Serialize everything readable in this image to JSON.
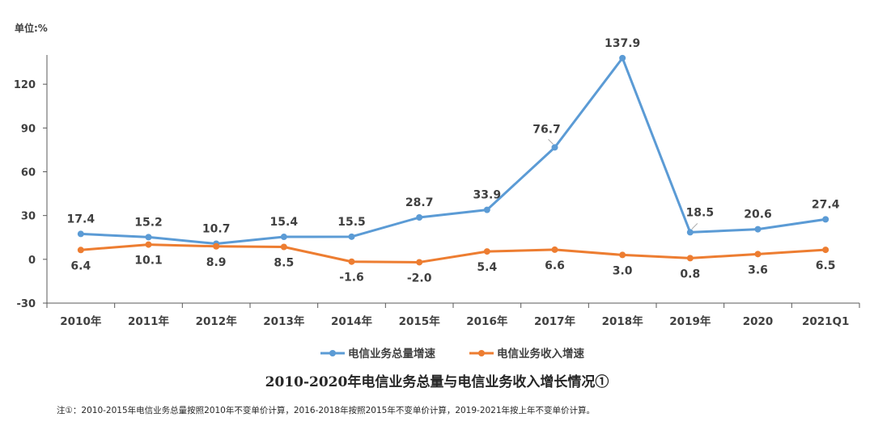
{
  "unit_label": "单位:%",
  "footnote": "注①：2010-2015年电信业务总量按照2010年不变单价计算，2016-2018年按照2015年不变单价计算，2019-2021年按上年不变单价计算。",
  "colors": {
    "series_total": "#5B9BD5",
    "series_revenue": "#ED7D31",
    "axis": "#595959",
    "text": "#404040"
  },
  "chart_data": {
    "type": "line",
    "title": "2010-2020年电信业务总量与电信业务收入增长情况①",
    "categories": [
      "2010年",
      "2011年",
      "2012年",
      "2013年",
      "2014年",
      "2015年",
      "2016年",
      "2017年",
      "2018年",
      "2019年",
      "2020",
      "2021Q1"
    ],
    "ylim": [
      -30,
      150
    ],
    "yticks": [
      -30,
      0,
      30,
      60,
      90,
      120
    ],
    "grid": false,
    "legend_placement": "bottom",
    "series": [
      {
        "name": "电信业务总量增速",
        "color": "#5B9BD5",
        "values": [
          17.4,
          15.2,
          10.7,
          15.4,
          15.5,
          28.7,
          33.9,
          76.7,
          137.9,
          18.5,
          20.6,
          27.4
        ],
        "labels": [
          "17.4",
          "15.2",
          "10.7",
          "15.4",
          "15.5",
          "28.7",
          "33.9",
          "76.7",
          "137.9",
          "18.5",
          "20.6",
          "27.4"
        ]
      },
      {
        "name": "电信业务收入增速",
        "color": "#ED7D31",
        "values": [
          6.4,
          10.1,
          8.9,
          8.5,
          -1.6,
          -2.0,
          5.4,
          6.6,
          3.0,
          0.8,
          3.6,
          6.5
        ],
        "labels": [
          "6.4",
          "10.1",
          "8.9",
          "8.5",
          "-1.6",
          "-2.0",
          "5.4",
          "6.6",
          "3.0",
          "0.8",
          "3.6",
          "6.5"
        ]
      }
    ]
  }
}
